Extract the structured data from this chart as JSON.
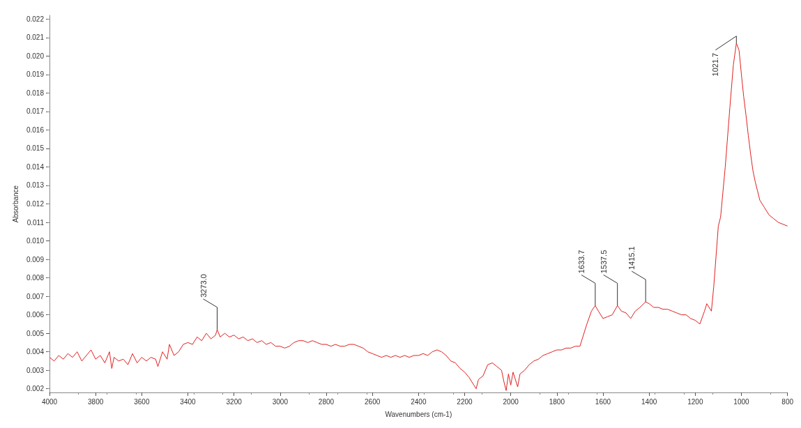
{
  "chart_data": {
    "type": "line",
    "xlabel": "Wavenumbers (cm-1)",
    "ylabel": "Absorbance",
    "xlim": [
      4000,
      800
    ],
    "xticks": [
      4000,
      3800,
      3600,
      3400,
      3200,
      3000,
      2800,
      2600,
      2400,
      2200,
      2000,
      1800,
      1600,
      1400,
      1200,
      1000,
      800
    ],
    "ylim": [
      0.0018,
      0.0222
    ],
    "yticks": [
      0.002,
      0.003,
      0.004,
      0.005,
      0.006,
      0.007,
      0.008,
      0.009,
      {
        "value": 0.01,
        "label": "0.010"
      },
      0.011,
      0.012,
      0.013,
      0.014,
      0.015,
      0.016,
      0.017,
      0.018,
      0.019,
      {
        "value": 0.02,
        "label": "0.020"
      },
      0.021,
      0.022
    ],
    "grid": false,
    "marker": "none",
    "line_style": "solid",
    "annotations": [
      {
        "text": "3273.0",
        "x": 3273,
        "y": 0.0052
      },
      {
        "text": "1633.7",
        "x": 1633.7,
        "y": 0.0065
      },
      {
        "text": "1537.5",
        "x": 1537.5,
        "y": 0.0065
      },
      {
        "text": "1415.1",
        "x": 1415.1,
        "y": 0.0067
      },
      {
        "text": "1021.7",
        "x": 1021.7,
        "y": 0.0207
      }
    ],
    "series": [
      {
        "color": "#e02020",
        "x": [
          4000,
          3980,
          3960,
          3940,
          3920,
          3900,
          3880,
          3860,
          3840,
          3820,
          3800,
          3780,
          3760,
          3740,
          3730,
          3720,
          3700,
          3680,
          3660,
          3640,
          3620,
          3600,
          3580,
          3560,
          3540,
          3530,
          3510,
          3490,
          3480,
          3460,
          3440,
          3420,
          3400,
          3380,
          3360,
          3340,
          3320,
          3300,
          3280,
          3273,
          3260,
          3240,
          3220,
          3200,
          3180,
          3160,
          3140,
          3120,
          3100,
          3080,
          3060,
          3040,
          3020,
          3000,
          2980,
          2960,
          2940,
          2920,
          2900,
          2880,
          2860,
          2840,
          2820,
          2800,
          2780,
          2760,
          2740,
          2720,
          2700,
          2680,
          2660,
          2640,
          2620,
          2600,
          2580,
          2560,
          2540,
          2520,
          2500,
          2480,
          2460,
          2440,
          2420,
          2400,
          2380,
          2360,
          2340,
          2320,
          2300,
          2280,
          2260,
          2240,
          2220,
          2200,
          2180,
          2160,
          2150,
          2140,
          2120,
          2100,
          2080,
          2060,
          2040,
          2030,
          2020,
          2010,
          2000,
          1990,
          1970,
          1960,
          1940,
          1920,
          1900,
          1880,
          1860,
          1840,
          1820,
          1800,
          1780,
          1760,
          1740,
          1720,
          1700,
          1690,
          1670,
          1650,
          1633.7,
          1620,
          1600,
          1580,
          1560,
          1537.5,
          1520,
          1500,
          1480,
          1460,
          1440,
          1415.1,
          1400,
          1380,
          1360,
          1340,
          1320,
          1300,
          1280,
          1260,
          1240,
          1220,
          1200,
          1180,
          1160,
          1150,
          1130,
          1120,
          1100,
          1090,
          1070,
          1050,
          1035,
          1021.7,
          1010,
          1000,
          990,
          980,
          970,
          960,
          950,
          940,
          930,
          920,
          900,
          880,
          860,
          840,
          820,
          800
        ],
        "values": [
          0.0037,
          0.0035,
          0.0038,
          0.0036,
          0.0039,
          0.0037,
          0.004,
          0.0035,
          0.0038,
          0.0041,
          0.0036,
          0.0038,
          0.0034,
          0.004,
          0.0031,
          0.0037,
          0.0035,
          0.0036,
          0.0033,
          0.0039,
          0.0034,
          0.0037,
          0.0035,
          0.0037,
          0.0036,
          0.0032,
          0.004,
          0.0036,
          0.0044,
          0.0038,
          0.004,
          0.0044,
          0.0045,
          0.0044,
          0.0048,
          0.0046,
          0.005,
          0.0047,
          0.0049,
          0.0052,
          0.0048,
          0.005,
          0.0048,
          0.0049,
          0.0047,
          0.0048,
          0.0046,
          0.0047,
          0.0045,
          0.0046,
          0.0044,
          0.0045,
          0.0043,
          0.0043,
          0.0042,
          0.0043,
          0.0045,
          0.0046,
          0.0046,
          0.0045,
          0.0046,
          0.0045,
          0.0044,
          0.0044,
          0.0043,
          0.0044,
          0.0043,
          0.0043,
          0.0044,
          0.0044,
          0.0043,
          0.0042,
          0.004,
          0.0039,
          0.0038,
          0.0037,
          0.0038,
          0.0037,
          0.0038,
          0.0037,
          0.0038,
          0.0037,
          0.0038,
          0.0038,
          0.0039,
          0.0038,
          0.004,
          0.0041,
          0.004,
          0.0038,
          0.0035,
          0.0034,
          0.0031,
          0.0029,
          0.0026,
          0.0022,
          0.002,
          0.0025,
          0.0027,
          0.0033,
          0.0034,
          0.0032,
          0.003,
          0.0024,
          0.0019,
          0.0028,
          0.0022,
          0.0029,
          0.0021,
          0.0028,
          0.003,
          0.0033,
          0.0035,
          0.0036,
          0.0038,
          0.0039,
          0.004,
          0.0041,
          0.0041,
          0.0042,
          0.0042,
          0.0043,
          0.0043,
          0.0047,
          0.0055,
          0.0062,
          0.0065,
          0.0062,
          0.0058,
          0.0059,
          0.006,
          0.0065,
          0.0062,
          0.0061,
          0.0058,
          0.0062,
          0.0064,
          0.0067,
          0.0066,
          0.0064,
          0.0064,
          0.0063,
          0.0063,
          0.0062,
          0.0061,
          0.006,
          0.006,
          0.0058,
          0.0057,
          0.0055,
          0.0062,
          0.0066,
          0.0062,
          0.0075,
          0.0108,
          0.0113,
          0.014,
          0.0172,
          0.0195,
          0.0207,
          0.0203,
          0.019,
          0.0178,
          0.0168,
          0.0157,
          0.0147,
          0.0138,
          0.0132,
          0.0127,
          0.0122,
          0.0118,
          0.0114,
          0.0112,
          0.011,
          0.0109,
          0.0108
        ]
      }
    ]
  }
}
